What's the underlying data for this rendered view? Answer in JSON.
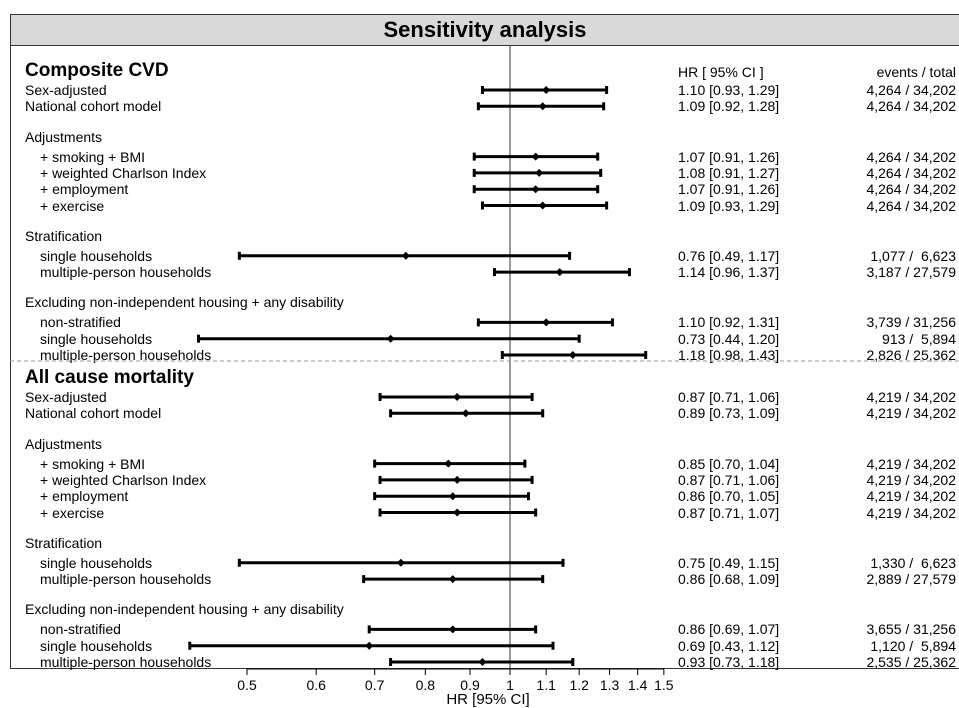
{
  "chart_data": {
    "type": "forest",
    "title": "Sensitivity analysis",
    "xlabel": "HR [95% CI]",
    "x_scale": "log",
    "x_ticks": [
      0.5,
      0.6,
      0.7,
      0.8,
      0.9,
      1,
      1.1,
      1.2,
      1.3,
      1.4,
      1.5
    ],
    "reference_line": 1,
    "column_headers": {
      "hr": "HR [  95% CI  ]",
      "events": "events /  total"
    },
    "sections": [
      {
        "title": "Composite CVD",
        "groups": [
          {
            "label": "",
            "rows": [
              {
                "label": "Sex-adjusted",
                "hr": 1.1,
                "lo": 0.93,
                "hi": 1.29,
                "hr_text": "1.10 [0.93, 1.29]",
                "events_text": "4,264 / 34,202"
              },
              {
                "label": "National cohort model",
                "hr": 1.09,
                "lo": 0.92,
                "hi": 1.28,
                "hr_text": "1.09 [0.92, 1.28]",
                "events_text": "4,264 / 34,202"
              }
            ]
          },
          {
            "label": "Adjustments",
            "rows": [
              {
                "label": "+ smoking + BMI",
                "hr": 1.07,
                "lo": 0.91,
                "hi": 1.26,
                "hr_text": "1.07 [0.91, 1.26]",
                "events_text": "4,264 / 34,202"
              },
              {
                "label": "+ weighted Charlson Index",
                "hr": 1.08,
                "lo": 0.91,
                "hi": 1.27,
                "hr_text": "1.08 [0.91, 1.27]",
                "events_text": "4,264 / 34,202"
              },
              {
                "label": "+ employment",
                "hr": 1.07,
                "lo": 0.91,
                "hi": 1.26,
                "hr_text": "1.07 [0.91, 1.26]",
                "events_text": "4,264 / 34,202"
              },
              {
                "label": "+ exercise",
                "hr": 1.09,
                "lo": 0.93,
                "hi": 1.29,
                "hr_text": "1.09 [0.93, 1.29]",
                "events_text": "4,264 / 34,202"
              }
            ]
          },
          {
            "label": "Stratification",
            "rows": [
              {
                "label": "single households",
                "hr": 0.76,
                "lo": 0.49,
                "hi": 1.17,
                "hr_text": "0.76 [0.49, 1.17]",
                "events_text": "1,077 /  6,623"
              },
              {
                "label": "multiple-person households",
                "hr": 1.14,
                "lo": 0.96,
                "hi": 1.37,
                "hr_text": "1.14 [0.96, 1.37]",
                "events_text": "3,187 / 27,579"
              }
            ]
          },
          {
            "label": "Excluding non-independent housing + any disability",
            "rows": [
              {
                "label": "non-stratified",
                "hr": 1.1,
                "lo": 0.92,
                "hi": 1.31,
                "hr_text": "1.10 [0.92, 1.31]",
                "events_text": "3,739 / 31,256"
              },
              {
                "label": "single households",
                "hr": 0.73,
                "lo": 0.44,
                "hi": 1.2,
                "hr_text": "0.73 [0.44, 1.20]",
                "events_text": "913 /  5,894"
              },
              {
                "label": "multiple-person households",
                "hr": 1.18,
                "lo": 0.98,
                "hi": 1.43,
                "hr_text": "1.18 [0.98, 1.43]",
                "events_text": "2,826 / 25,362"
              }
            ]
          }
        ]
      },
      {
        "title": "All cause mortality",
        "groups": [
          {
            "label": "",
            "rows": [
              {
                "label": "Sex-adjusted",
                "hr": 0.87,
                "lo": 0.71,
                "hi": 1.06,
                "hr_text": "0.87 [0.71, 1.06]",
                "events_text": "4,219 / 34,202"
              },
              {
                "label": "National cohort model",
                "hr": 0.89,
                "lo": 0.73,
                "hi": 1.09,
                "hr_text": "0.89 [0.73, 1.09]",
                "events_text": "4,219 / 34,202"
              }
            ]
          },
          {
            "label": "Adjustments",
            "rows": [
              {
                "label": "+ smoking + BMI",
                "hr": 0.85,
                "lo": 0.7,
                "hi": 1.04,
                "hr_text": "0.85 [0.70, 1.04]",
                "events_text": "4,219 / 34,202"
              },
              {
                "label": "+ weighted Charlson Index",
                "hr": 0.87,
                "lo": 0.71,
                "hi": 1.06,
                "hr_text": "0.87 [0.71, 1.06]",
                "events_text": "4,219 / 34,202"
              },
              {
                "label": "+ employment",
                "hr": 0.86,
                "lo": 0.7,
                "hi": 1.05,
                "hr_text": "0.86 [0.70, 1.05]",
                "events_text": "4,219 / 34,202"
              },
              {
                "label": "+ exercise",
                "hr": 0.87,
                "lo": 0.71,
                "hi": 1.07,
                "hr_text": "0.87 [0.71, 1.07]",
                "events_text": "4,219 / 34,202"
              }
            ]
          },
          {
            "label": "Stratification",
            "rows": [
              {
                "label": "single households",
                "hr": 0.75,
                "lo": 0.49,
                "hi": 1.15,
                "hr_text": "0.75 [0.49, 1.15]",
                "events_text": "1,330 /  6,623"
              },
              {
                "label": "multiple-person households",
                "hr": 0.86,
                "lo": 0.68,
                "hi": 1.09,
                "hr_text": "0.86 [0.68, 1.09]",
                "events_text": "2,889 / 27,579"
              }
            ]
          },
          {
            "label": "Excluding non-independent housing + any disability",
            "rows": [
              {
                "label": "non-stratified",
                "hr": 0.86,
                "lo": 0.69,
                "hi": 1.07,
                "hr_text": "0.86 [0.69, 1.07]",
                "events_text": "3,655 / 31,256"
              },
              {
                "label": "single households",
                "hr": 0.69,
                "lo": 0.43,
                "hi": 1.12,
                "hr_text": "0.69 [0.43, 1.12]",
                "events_text": "1,120 /  5,894"
              },
              {
                "label": "multiple-person households",
                "hr": 0.93,
                "lo": 0.73,
                "hi": 1.18,
                "hr_text": "0.93 [0.73, 1.18]",
                "events_text": "2,535 / 25,362"
              }
            ]
          }
        ]
      }
    ]
  }
}
